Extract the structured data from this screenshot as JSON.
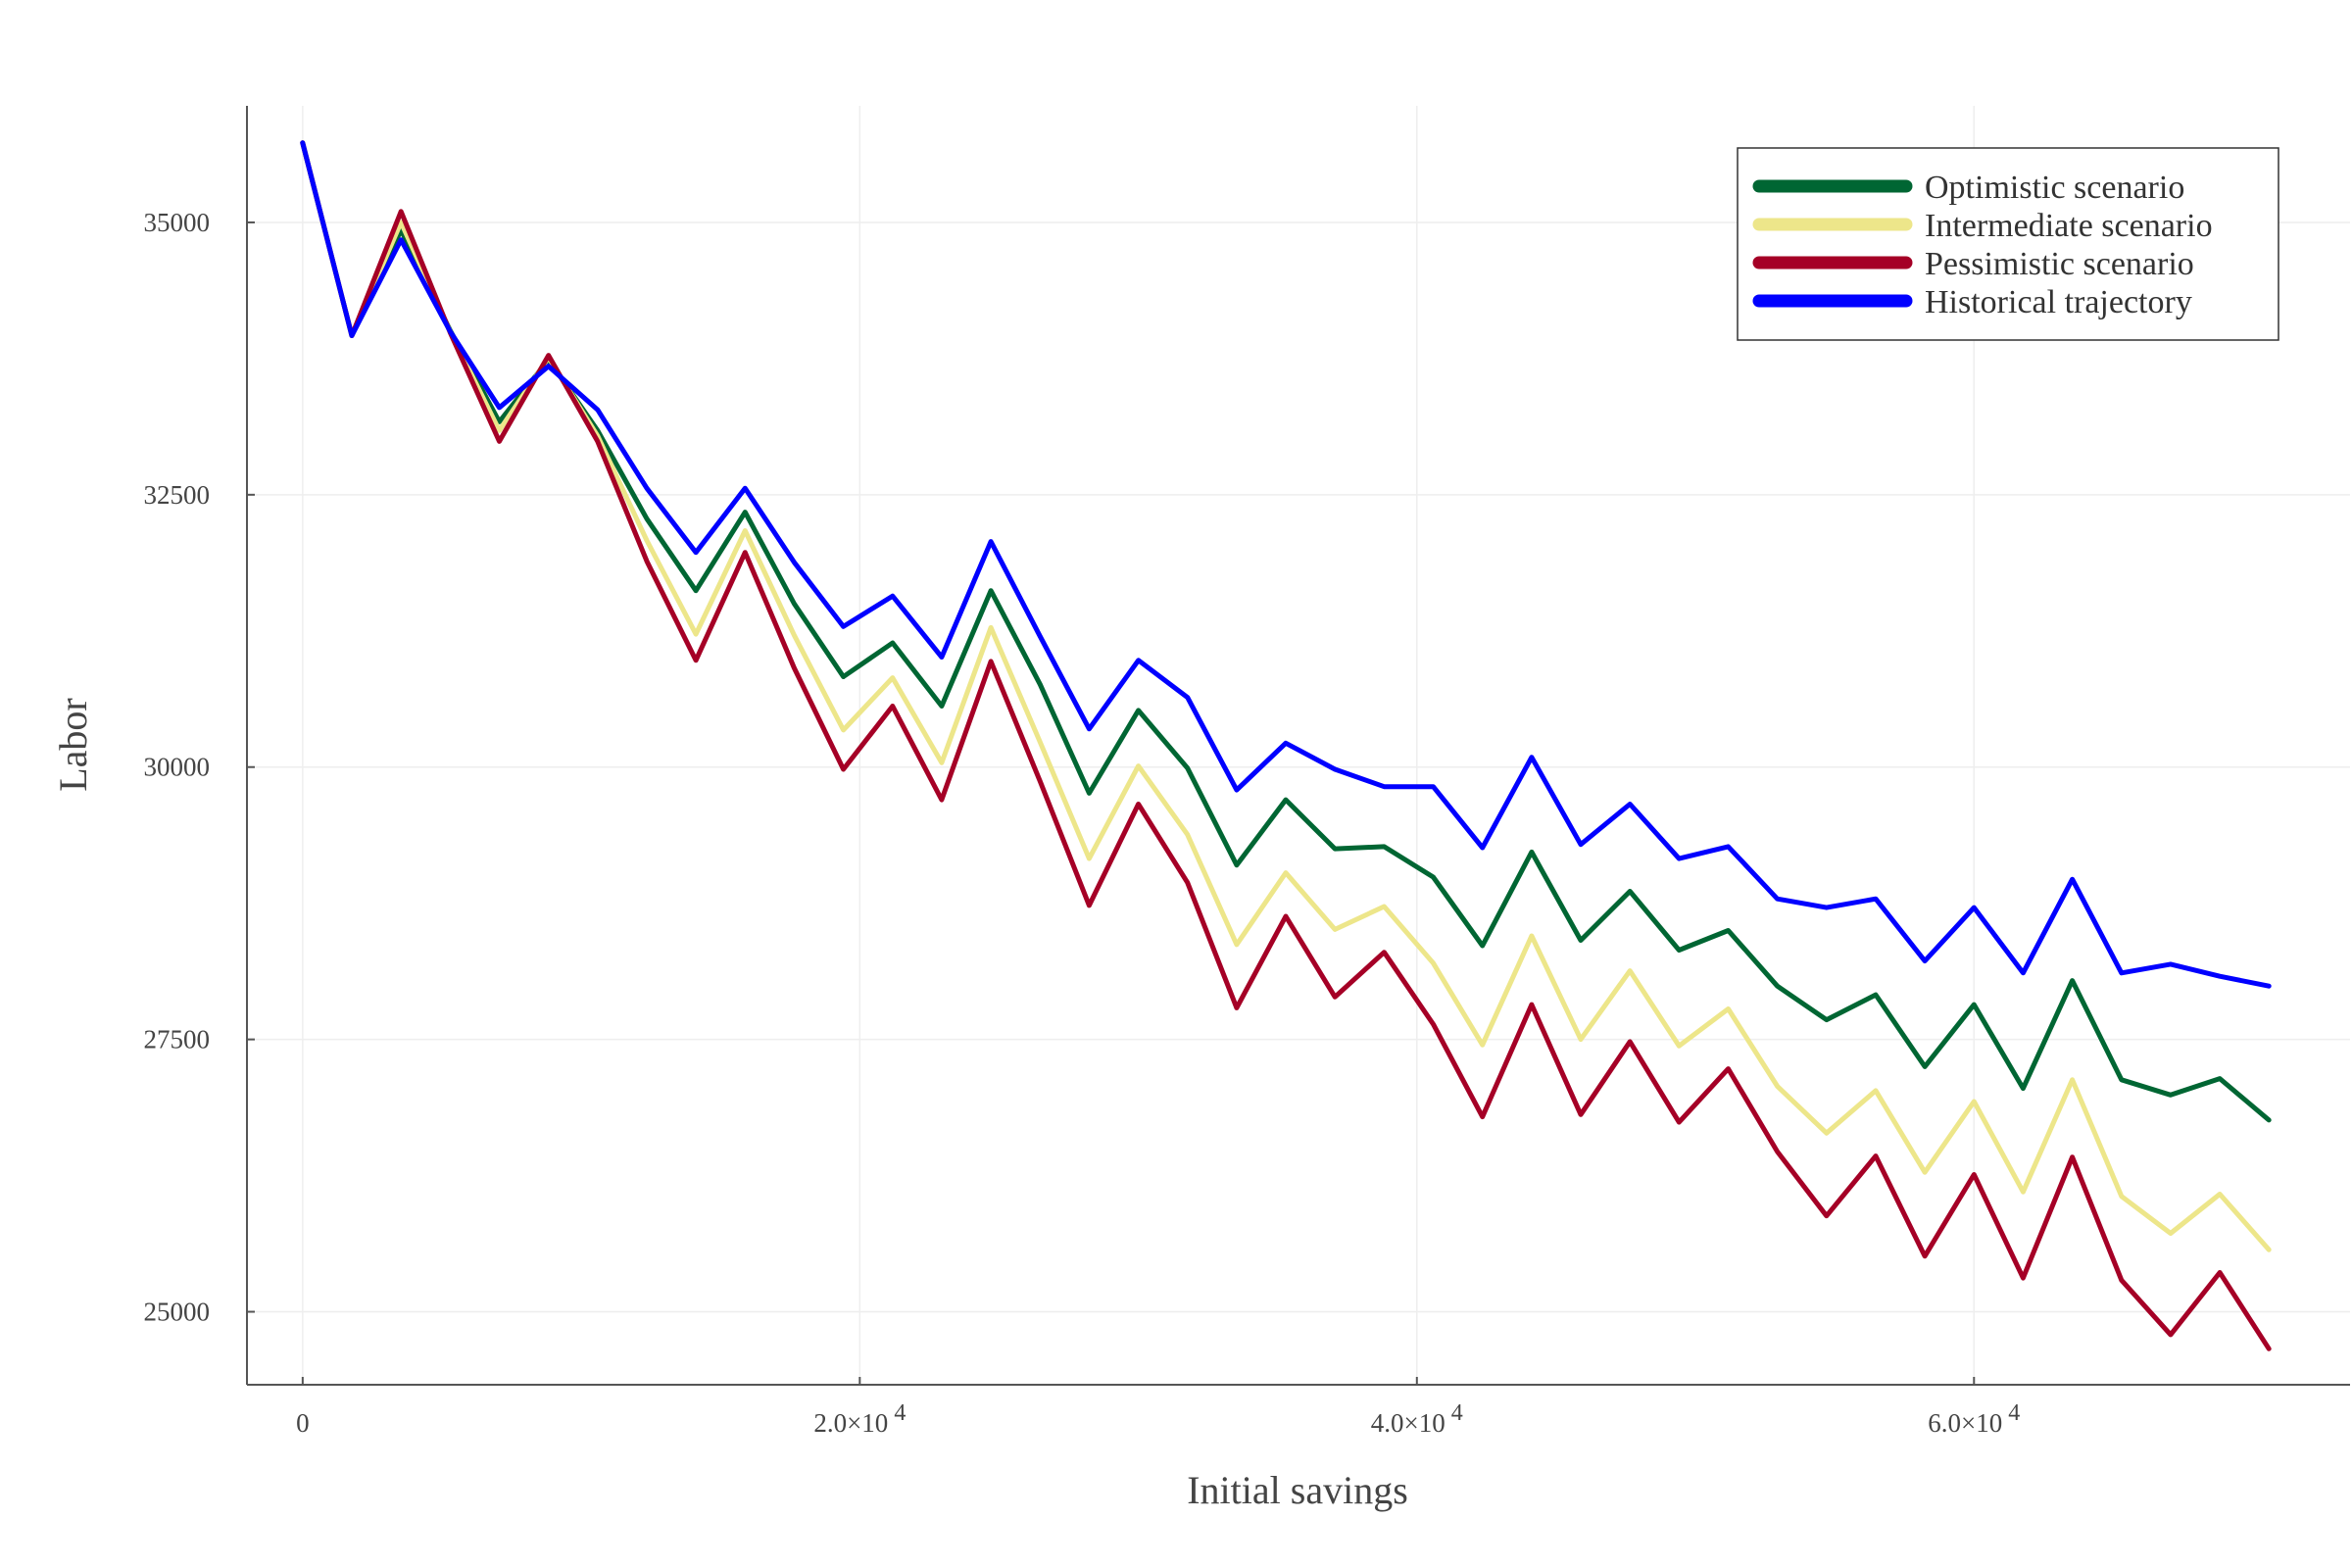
{
  "chart_data": {
    "type": "line",
    "xlabel": "Initial savings",
    "ylabel": "Labor",
    "xlim": [
      -2000,
      73500
    ],
    "ylim": [
      24330,
      36070
    ],
    "x_ticks": [
      {
        "value": 0,
        "label": "0",
        "exp": ""
      },
      {
        "value": 20000,
        "label": "2.0×10",
        "exp": "4"
      },
      {
        "value": 40000,
        "label": "4.0×10",
        "exp": "4"
      },
      {
        "value": 60000,
        "label": "6.0×10",
        "exp": "4"
      }
    ],
    "y_ticks": [
      {
        "value": 25000,
        "label": "25000"
      },
      {
        "value": 27500,
        "label": "27500"
      },
      {
        "value": 30000,
        "label": "30000"
      },
      {
        "value": 32500,
        "label": "32500"
      },
      {
        "value": 35000,
        "label": "35000"
      }
    ],
    "grid": true,
    "legend_position": "top-right",
    "x": [
      0,
      1765,
      3529,
      5294,
      7059,
      8824,
      10588,
      12353,
      14118,
      15882,
      17647,
      19412,
      21176,
      22941,
      24706,
      26471,
      28235,
      30000,
      31765,
      33529,
      35294,
      37059,
      38824,
      40588,
      42353,
      44118,
      45882,
      47647,
      49412,
      51176,
      52941,
      54706,
      56471,
      58235,
      60000,
      61765,
      63529,
      65294,
      67059,
      68824,
      70588
    ],
    "series": [
      {
        "name": "Optimistic scenario",
        "color": "#006633",
        "values": [
          35730,
          33960,
          34930,
          34010,
          33170,
          33740,
          33090,
          32280,
          31620,
          32340,
          31500,
          30830,
          31140,
          30560,
          31620,
          30760,
          29760,
          30520,
          29990,
          29100,
          29700,
          29250,
          29270,
          28990,
          28360,
          29220,
          28410,
          28860,
          28320,
          28500,
          27990,
          27680,
          27910,
          27250,
          27820,
          27050,
          28040,
          27130,
          26990,
          27140,
          26760
        ]
      },
      {
        "name": "Intermediate scenario",
        "color": "#EDE68A",
        "values": [
          35730,
          33960,
          35000,
          34000,
          33090,
          33760,
          33040,
          32080,
          31220,
          32170,
          31210,
          30340,
          30820,
          30040,
          31280,
          30230,
          29160,
          30010,
          29380,
          28370,
          29030,
          28510,
          28720,
          28200,
          27450,
          28450,
          27500,
          28130,
          27440,
          27780,
          27070,
          26640,
          27030,
          26280,
          26930,
          26100,
          27130,
          26060,
          25720,
          26080,
          25570
        ]
      },
      {
        "name": "Pessimistic scenario",
        "color": "#A50026",
        "values": [
          35730,
          33960,
          35100,
          33990,
          32990,
          33780,
          32990,
          31890,
          30980,
          31970,
          30910,
          29980,
          30560,
          29700,
          30970,
          29870,
          28730,
          29660,
          28940,
          27790,
          28630,
          27890,
          28300,
          27640,
          26790,
          27820,
          26810,
          27480,
          26740,
          27230,
          26470,
          25880,
          26430,
          25510,
          26260,
          25310,
          26420,
          25290,
          24790,
          25360,
          24660
        ]
      },
      {
        "name": "Historical trajectory",
        "color": "#0000FF",
        "values": [
          35730,
          33960,
          34840,
          34000,
          33300,
          33680,
          33280,
          32560,
          31970,
          32560,
          31880,
          31290,
          31570,
          31010,
          32070,
          31200,
          30350,
          30980,
          30640,
          29790,
          30220,
          29980,
          29820,
          29820,
          29260,
          30090,
          29290,
          29660,
          29160,
          29270,
          28790,
          28710,
          28790,
          28220,
          28710,
          28110,
          28970,
          28110,
          28190,
          28080,
          27990
        ]
      }
    ]
  }
}
